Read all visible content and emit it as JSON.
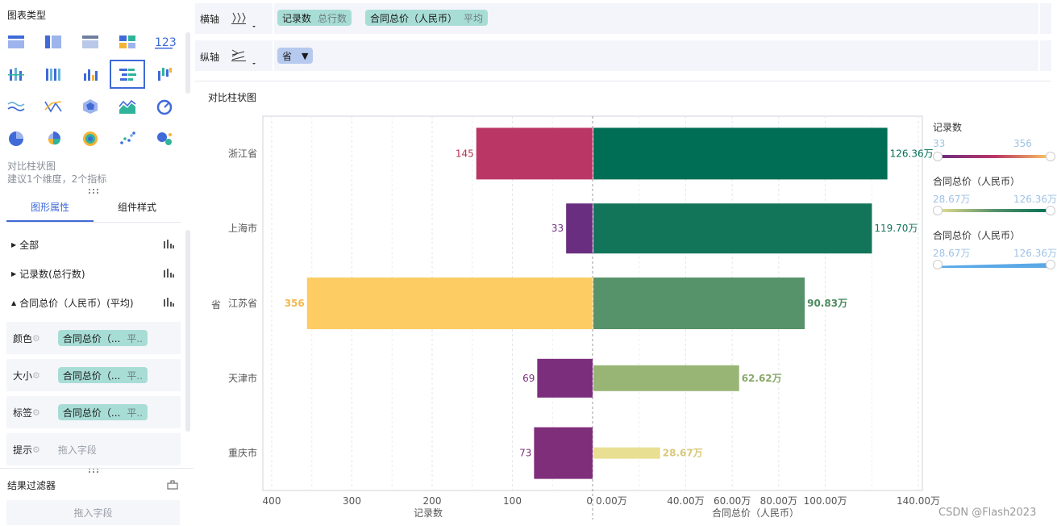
{
  "left_panel": {
    "chart_type_title": "图表类型",
    "selected_chart_name": "对比柱状图",
    "selected_chart_hint": "建议1个维度，2个指标",
    "tabs": [
      "图形属性",
      "组件样式"
    ],
    "tree": [
      {
        "label": "全部",
        "expanded": false
      },
      {
        "label": "记录数(总行数)",
        "expanded": false
      },
      {
        "label": "合同总价（人民币）(平均)",
        "expanded": true
      }
    ],
    "props": [
      {
        "label": "颜色",
        "pill": "合同总价（...",
        "pill_sub": "平.."
      },
      {
        "label": "大小",
        "pill": "合同总价（...",
        "pill_sub": "平.."
      },
      {
        "label": "标签",
        "pill": "合同总价（...",
        "pill_sub": "平.."
      },
      {
        "label": "提示",
        "drop": "拖入字段"
      }
    ],
    "filter_title": "结果过滤器",
    "filter_drop": "拖入字段"
  },
  "top": {
    "x_axis_label": "横轴",
    "y_axis_label": "纵轴",
    "x_fields": [
      {
        "name": "记录数",
        "sub": "总行数"
      },
      {
        "name": "合同总价（人民币）",
        "sub": "平均"
      }
    ],
    "y_fields": [
      {
        "name": "省"
      }
    ]
  },
  "chart_title": "对比柱状图",
  "chart_data": {
    "type": "bar",
    "orientation": "horizontal-butterfly",
    "y_label": "省",
    "categories": [
      "浙江省",
      "上海市",
      "江苏省",
      "天津市",
      "重庆市"
    ],
    "left": {
      "xlabel": "记录数",
      "values": [
        145,
        33,
        356,
        69,
        73
      ],
      "value_labels": [
        "145",
        "33",
        "356",
        "69",
        "73"
      ],
      "colors": [
        "#ba3665",
        "#6a2e80",
        "#fdcc63",
        "#7b2e7c",
        "#7f2e7a"
      ],
      "label_colors": [
        "#b7304f",
        "#6b2f7f",
        "#f1b84e",
        "#7b2f7a",
        "#7b2f7a"
      ],
      "ticks": [
        "400",
        "300",
        "200",
        "100",
        "0"
      ],
      "xlim": [
        0,
        400
      ]
    },
    "right": {
      "xlabel": "合同总价（人民币）",
      "values": [
        126.36,
        119.7,
        90.83,
        62.62,
        28.67
      ],
      "value_labels": [
        "126.36万",
        "119.70万",
        "90.83万",
        "62.62万",
        "28.67万"
      ],
      "colors": [
        "#006e54",
        "#127559",
        "#56926a",
        "#98b576",
        "#e9df93"
      ],
      "label_colors": [
        "#006e54",
        "#127559",
        "#4c8a5f",
        "#8aa96a",
        "#d9c879"
      ],
      "ticks": [
        "0.00万",
        "40.00万",
        "60.00万",
        "80.00万",
        "100.00万",
        "140.00万"
      ],
      "tick_values": [
        0,
        40,
        60,
        80,
        100,
        140
      ],
      "xlim": [
        0,
        140
      ]
    }
  },
  "legend": [
    {
      "title": "记录数",
      "min": "33",
      "max": "356",
      "gradient": [
        "#6a2e80",
        "#ba3665",
        "#fdcc63"
      ]
    },
    {
      "title": "合同总价（人民币）",
      "min": "28.67万",
      "max": "126.36万",
      "gradient": [
        "#e9df93",
        "#56926a",
        "#006e54"
      ]
    },
    {
      "title": "合同总价（人民币）",
      "min": "28.67万",
      "max": "126.36万",
      "gradient": [
        "#5aa8e6",
        "#5aa8e6"
      ]
    }
  ],
  "watermark": "CSDN @Flash2023"
}
